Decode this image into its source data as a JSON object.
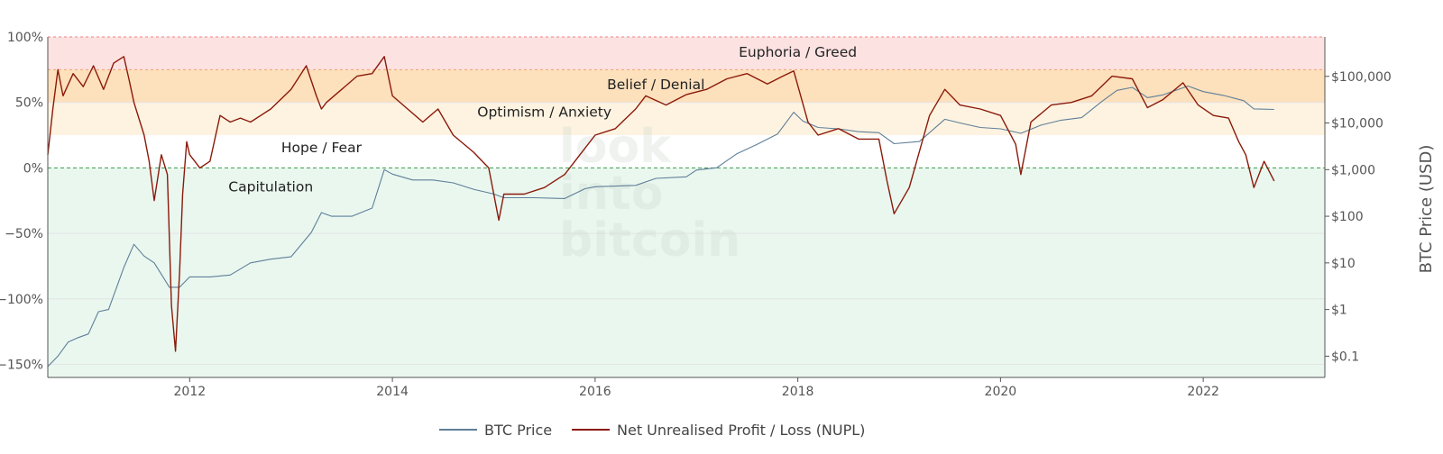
{
  "chart_data": {
    "type": "line",
    "watermark": [
      "look",
      "into",
      "bitcoin"
    ],
    "x_ticks": [
      "2012",
      "2014",
      "2016",
      "2018",
      "2020",
      "2022"
    ],
    "x_range": [
      2010.6,
      2023.2
    ],
    "y_left": {
      "range": [
        -160,
        100
      ],
      "ticks": [
        {
          "v": 100,
          "label": "100%"
        },
        {
          "v": 50,
          "label": "50%"
        },
        {
          "v": 0,
          "label": "0%"
        },
        {
          "v": -50,
          "label": "−50%"
        },
        {
          "v": -100,
          "label": "−100%"
        },
        {
          "v": -150,
          "label": "−150%"
        }
      ]
    },
    "y_right": {
      "title": "BTC Price (USD)",
      "scale": "log",
      "range": [
        0.035,
        700000
      ],
      "ticks": [
        {
          "v": 100000,
          "label": "$100,000"
        },
        {
          "v": 10000,
          "label": "$10,000"
        },
        {
          "v": 1000,
          "label": "$1,000"
        },
        {
          "v": 100,
          "label": "$100"
        },
        {
          "v": 10,
          "label": "$10"
        },
        {
          "v": 1,
          "label": "$1"
        },
        {
          "v": 0.1,
          "label": "$0.1"
        }
      ]
    },
    "zones": [
      {
        "name": "Euphoria / Greed",
        "from": 75,
        "to": 100,
        "color": "#fde2e2"
      },
      {
        "name": "Belief / Denial",
        "from": 50,
        "to": 75,
        "color": "#fde0bc"
      },
      {
        "name": "Optimism / Anxiety",
        "from": 25,
        "to": 50,
        "color": "#fef3e1"
      },
      {
        "name": "Hope / Fear",
        "from": 0,
        "to": 25,
        "color": "#ffffff"
      },
      {
        "name": "Capitulation",
        "from": -160,
        "to": 0,
        "color": "#e9f7ef"
      }
    ],
    "zone_labels": [
      {
        "text": "Euphoria / Greed",
        "x": 2018.0,
        "y": 85
      },
      {
        "text": "Belief / Denial",
        "x": 2016.6,
        "y": 60
      },
      {
        "text": "Optimism / Anxiety",
        "x": 2015.5,
        "y": 39
      },
      {
        "text": "Hope / Fear",
        "x": 2013.3,
        "y": 12
      },
      {
        "text": "Capitulation",
        "x": 2012.8,
        "y": -18
      }
    ],
    "series": [
      {
        "name": "BTC Price",
        "axis": "right",
        "color": "#5f7f98",
        "x": [
          2010.6,
          2010.7,
          2010.8,
          2010.9,
          2011.0,
          2011.1,
          2011.2,
          2011.35,
          2011.45,
          2011.55,
          2011.65,
          2011.8,
          2011.9,
          2012.0,
          2012.2,
          2012.4,
          2012.6,
          2012.8,
          2013.0,
          2013.2,
          2013.3,
          2013.4,
          2013.6,
          2013.8,
          2013.92,
          2014.0,
          2014.2,
          2014.4,
          2014.6,
          2014.8,
          2015.0,
          2015.1,
          2015.4,
          2015.7,
          2015.9,
          2016.0,
          2016.4,
          2016.6,
          2016.9,
          2017.0,
          2017.2,
          2017.4,
          2017.6,
          2017.8,
          2017.96,
          2018.05,
          2018.2,
          2018.4,
          2018.6,
          2018.8,
          2018.95,
          2019.2,
          2019.45,
          2019.6,
          2019.8,
          2020.0,
          2020.2,
          2020.4,
          2020.6,
          2020.8,
          2021.0,
          2021.15,
          2021.3,
          2021.45,
          2021.6,
          2021.85,
          2022.0,
          2022.2,
          2022.4,
          2022.5,
          2022.7
        ],
        "y": [
          0.06,
          0.1,
          0.2,
          0.25,
          0.3,
          0.9,
          1.0,
          8,
          25,
          14,
          10,
          3,
          3,
          5,
          5,
          5.5,
          10,
          12,
          13.5,
          45,
          120,
          100,
          100,
          150,
          1000,
          800,
          600,
          600,
          520,
          380,
          300,
          250,
          250,
          240,
          390,
          430,
          460,
          650,
          700,
          980,
          1100,
          2200,
          3500,
          5800,
          17000,
          11000,
          8000,
          7500,
          6500,
          6200,
          3600,
          4000,
          12000,
          10000,
          8000,
          7500,
          6000,
          9000,
          11500,
          13000,
          29000,
          50000,
          58000,
          35000,
          40000,
          62000,
          47000,
          39000,
          30000,
          20000,
          19500
        ]
      },
      {
        "name": "Net Unrealised Profit / Loss (NUPL)",
        "axis": "left",
        "color": "#8b1a0a",
        "x": [
          2010.6,
          2010.65,
          2010.7,
          2010.75,
          2010.85,
          2010.95,
          2011.05,
          2011.15,
          2011.25,
          2011.35,
          2011.4,
          2011.45,
          2011.55,
          2011.6,
          2011.65,
          2011.72,
          2011.78,
          2011.82,
          2011.86,
          2011.9,
          2011.93,
          2011.97,
          2012.0,
          2012.05,
          2012.1,
          2012.2,
          2012.3,
          2012.4,
          2012.5,
          2012.6,
          2012.8,
          2013.0,
          2013.15,
          2013.25,
          2013.3,
          2013.35,
          2013.5,
          2013.65,
          2013.8,
          2013.92,
          2014.0,
          2014.15,
          2014.3,
          2014.45,
          2014.6,
          2014.8,
          2014.95,
          2015.05,
          2015.1,
          2015.3,
          2015.5,
          2015.7,
          2015.85,
          2016.0,
          2016.2,
          2016.4,
          2016.5,
          2016.7,
          2016.9,
          2017.1,
          2017.3,
          2017.5,
          2017.7,
          2017.85,
          2017.96,
          2018.1,
          2018.2,
          2018.4,
          2018.6,
          2018.8,
          2018.88,
          2018.95,
          2019.1,
          2019.3,
          2019.45,
          2019.6,
          2019.8,
          2020.0,
          2020.15,
          2020.2,
          2020.3,
          2020.5,
          2020.7,
          2020.9,
          2021.1,
          2021.3,
          2021.45,
          2021.6,
          2021.8,
          2021.95,
          2022.1,
          2022.25,
          2022.35,
          2022.42,
          2022.5,
          2022.6,
          2022.7
        ],
        "y": [
          10,
          45,
          75,
          55,
          72,
          62,
          78,
          60,
          80,
          85,
          68,
          50,
          25,
          5,
          -25,
          10,
          -5,
          -105,
          -140,
          -80,
          -20,
          20,
          10,
          5,
          0,
          5,
          40,
          35,
          38,
          35,
          45,
          60,
          78,
          55,
          45,
          50,
          60,
          70,
          72,
          85,
          55,
          45,
          35,
          45,
          25,
          12,
          0,
          -40,
          -20,
          -20,
          -15,
          -5,
          10,
          25,
          30,
          45,
          55,
          48,
          56,
          60,
          68,
          72,
          64,
          70,
          74,
          35,
          25,
          30,
          22,
          22,
          -10,
          -35,
          -15,
          40,
          60,
          48,
          45,
          40,
          18,
          -5,
          35,
          48,
          50,
          55,
          70,
          68,
          46,
          52,
          65,
          48,
          40,
          38,
          20,
          10,
          -15,
          5,
          -10
        ]
      }
    ]
  }
}
